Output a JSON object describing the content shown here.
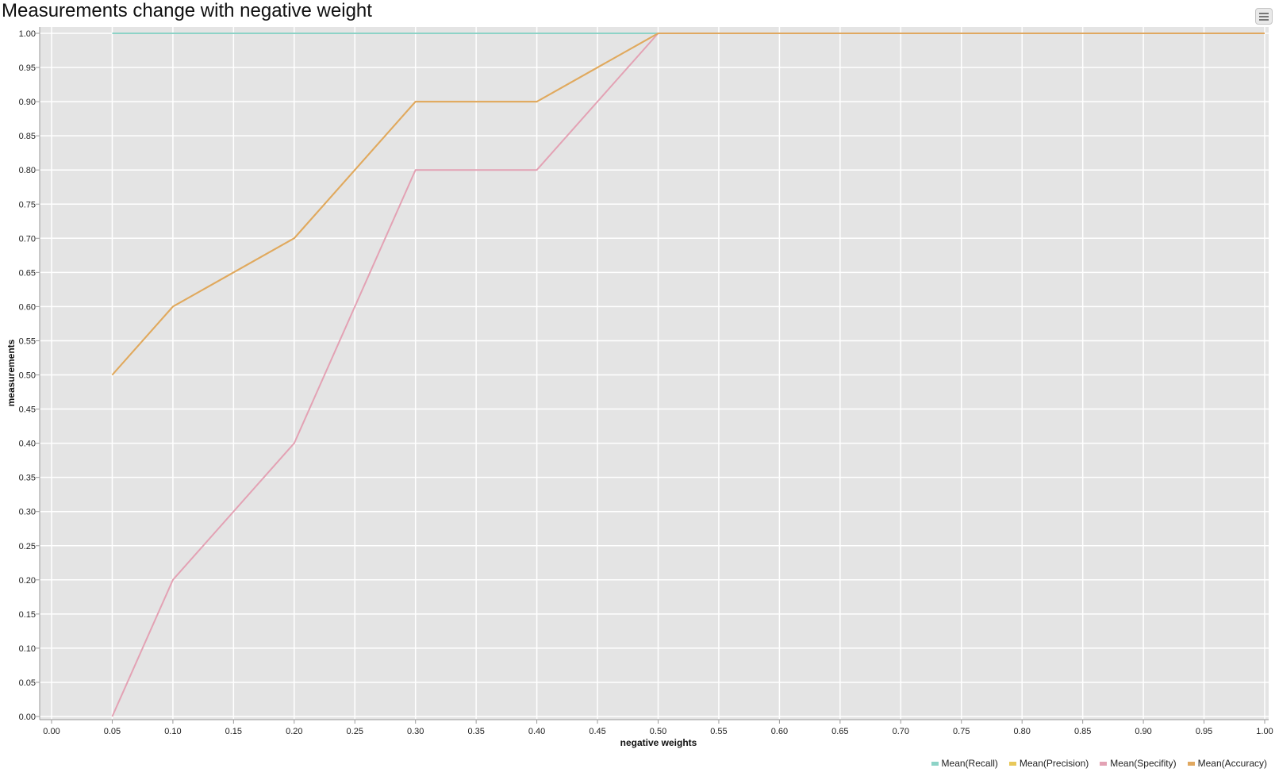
{
  "title": "Measurements change with negative weight",
  "menu_icon": "hamburger-menu-icon",
  "chart_data": {
    "type": "line",
    "title": "Measurements change with negative weight",
    "xlabel": "negative weights",
    "ylabel": "measurements",
    "xlim": [
      0,
      1
    ],
    "ylim": [
      0,
      1
    ],
    "x_ticks": [
      "0.00",
      "0.05",
      "0.10",
      "0.15",
      "0.20",
      "0.25",
      "0.30",
      "0.35",
      "0.40",
      "0.45",
      "0.50",
      "0.55",
      "0.60",
      "0.65",
      "0.70",
      "0.75",
      "0.80",
      "0.85",
      "0.90",
      "0.95",
      "1.00"
    ],
    "y_ticks": [
      "0.00",
      "0.05",
      "0.10",
      "0.15",
      "0.20",
      "0.25",
      "0.30",
      "0.35",
      "0.40",
      "0.45",
      "0.50",
      "0.55",
      "0.60",
      "0.65",
      "0.70",
      "0.75",
      "0.80",
      "0.85",
      "0.90",
      "0.95",
      "1.00"
    ],
    "grid": true,
    "legend_position": "bottom-right",
    "x": [
      0.05,
      0.1,
      0.2,
      0.3,
      0.4,
      0.5,
      0.6,
      0.7,
      0.8,
      0.9,
      1.0
    ],
    "series": [
      {
        "name": "Mean(Recall)",
        "color": "#8dd3c7",
        "values": [
          1,
          1,
          1,
          1,
          1,
          1,
          1,
          1,
          1,
          1,
          1
        ]
      },
      {
        "name": "Mean(Precision)",
        "color": "#e8c85a",
        "values": [
          0.5,
          0.6,
          0.7,
          0.9,
          0.9,
          1,
          1,
          1,
          1,
          1,
          1
        ]
      },
      {
        "name": "Mean(Specifity)",
        "color": "#e3a2b4",
        "values": [
          0,
          0.2,
          0.4,
          0.8,
          0.8,
          1,
          1,
          1,
          1,
          1,
          1
        ]
      },
      {
        "name": "Mean(Accuracy)",
        "color": "#e0a860",
        "values": [
          0.5,
          0.6,
          0.7,
          0.9,
          0.9,
          1,
          1,
          1,
          1,
          1,
          1
        ]
      }
    ]
  }
}
